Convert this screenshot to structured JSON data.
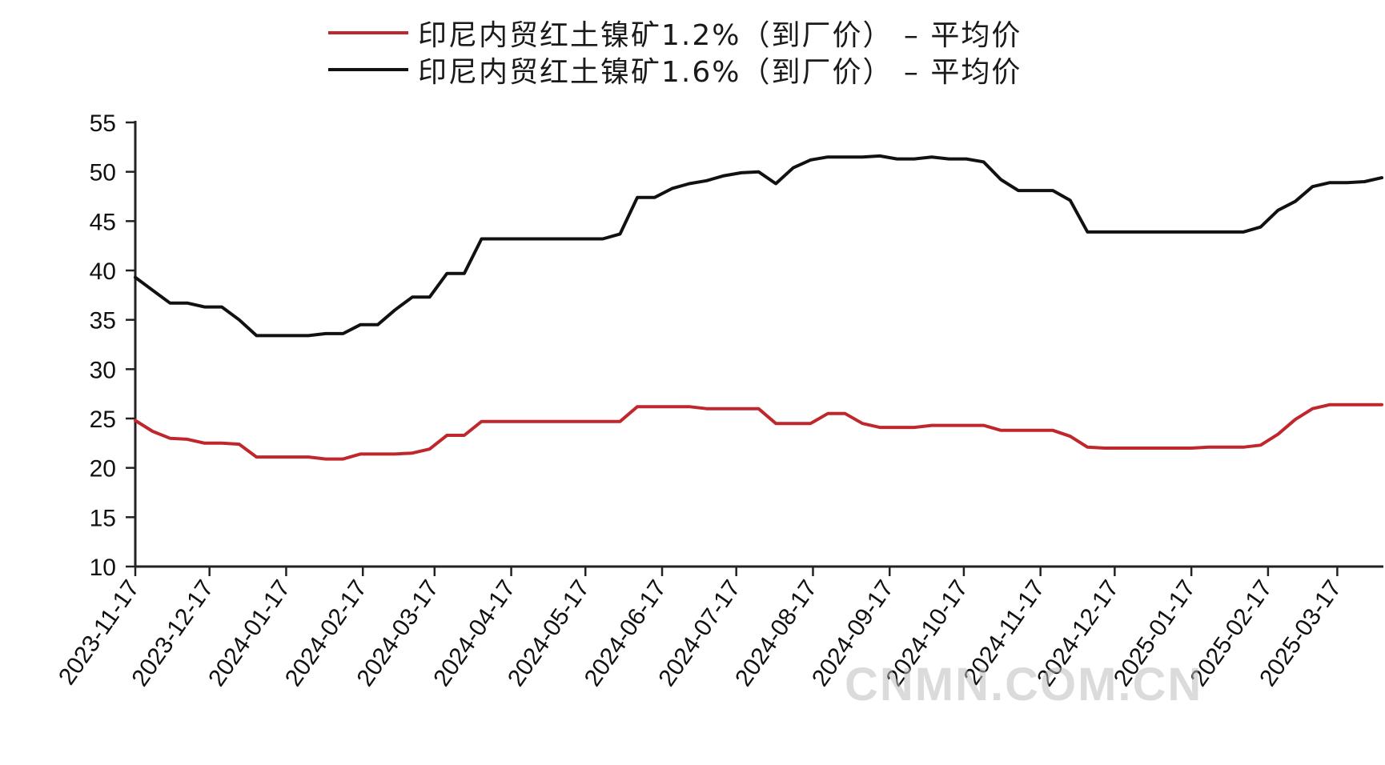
{
  "legend": {
    "series_1": "印尼内贸红土镍矿1.2%（到厂价） – 平均价",
    "series_2": "印尼内贸红土镍矿1.6%（到厂价） – 平均价"
  },
  "watermark": "CNMN.COM.CN",
  "chart_data": {
    "type": "line",
    "title": "",
    "xlabel": "",
    "ylabel": "",
    "ylim": [
      10,
      55
    ],
    "yticks": [
      10,
      15,
      20,
      25,
      30,
      35,
      40,
      45,
      50,
      55
    ],
    "xlim": [
      "2023-11-17",
      "2025-04-04"
    ],
    "xticks": [
      "2023-11-17",
      "2023-12-17",
      "2024-01-17",
      "2024-02-17",
      "2024-03-17",
      "2024-04-17",
      "2024-05-17",
      "2024-06-17",
      "2024-07-17",
      "2024-08-17",
      "2024-09-17",
      "2024-10-17",
      "2024-11-17",
      "2024-12-17",
      "2025-01-17",
      "2025-02-17",
      "2025-03-17"
    ],
    "grid": false,
    "legend_position": "top-center",
    "series": [
      {
        "name": "印尼内贸红土镍矿1.2%（到厂价） – 平均价",
        "color": "#c0272d",
        "points": [
          [
            "2023-11-17",
            24.8
          ],
          [
            "2023-11-24",
            23.7
          ],
          [
            "2023-12-01",
            23.0
          ],
          [
            "2023-12-08",
            22.9
          ],
          [
            "2023-12-15",
            22.5
          ],
          [
            "2023-12-22",
            22.5
          ],
          [
            "2023-12-29",
            22.4
          ],
          [
            "2024-01-05",
            21.1
          ],
          [
            "2024-01-12",
            21.1
          ],
          [
            "2024-01-19",
            21.1
          ],
          [
            "2024-01-26",
            21.1
          ],
          [
            "2024-02-02",
            20.9
          ],
          [
            "2024-02-09",
            20.9
          ],
          [
            "2024-02-16",
            21.4
          ],
          [
            "2024-02-23",
            21.4
          ],
          [
            "2024-03-01",
            21.4
          ],
          [
            "2024-03-08",
            21.5
          ],
          [
            "2024-03-15",
            21.9
          ],
          [
            "2024-03-22",
            23.3
          ],
          [
            "2024-03-29",
            23.3
          ],
          [
            "2024-04-05",
            24.7
          ],
          [
            "2024-04-12",
            24.7
          ],
          [
            "2024-04-19",
            24.7
          ],
          [
            "2024-04-26",
            24.7
          ],
          [
            "2024-05-03",
            24.7
          ],
          [
            "2024-05-10",
            24.7
          ],
          [
            "2024-05-17",
            24.7
          ],
          [
            "2024-05-24",
            24.7
          ],
          [
            "2024-05-31",
            24.7
          ],
          [
            "2024-06-07",
            26.2
          ],
          [
            "2024-06-14",
            26.2
          ],
          [
            "2024-06-21",
            26.2
          ],
          [
            "2024-06-28",
            26.2
          ],
          [
            "2024-07-05",
            26.0
          ],
          [
            "2024-07-12",
            26.0
          ],
          [
            "2024-07-19",
            26.0
          ],
          [
            "2024-07-26",
            26.0
          ],
          [
            "2024-08-02",
            24.5
          ],
          [
            "2024-08-09",
            24.5
          ],
          [
            "2024-08-16",
            24.5
          ],
          [
            "2024-08-23",
            25.5
          ],
          [
            "2024-08-30",
            25.5
          ],
          [
            "2024-09-06",
            24.5
          ],
          [
            "2024-09-13",
            24.1
          ],
          [
            "2024-09-20",
            24.1
          ],
          [
            "2024-09-27",
            24.1
          ],
          [
            "2024-10-04",
            24.3
          ],
          [
            "2024-10-11",
            24.3
          ],
          [
            "2024-10-18",
            24.3
          ],
          [
            "2024-10-25",
            24.3
          ],
          [
            "2024-11-01",
            23.8
          ],
          [
            "2024-11-08",
            23.8
          ],
          [
            "2024-11-15",
            23.8
          ],
          [
            "2024-11-22",
            23.8
          ],
          [
            "2024-11-29",
            23.2
          ],
          [
            "2024-12-06",
            22.1
          ],
          [
            "2024-12-13",
            22.0
          ],
          [
            "2024-12-20",
            22.0
          ],
          [
            "2024-12-27",
            22.0
          ],
          [
            "2025-01-03",
            22.0
          ],
          [
            "2025-01-10",
            22.0
          ],
          [
            "2025-01-17",
            22.0
          ],
          [
            "2025-01-24",
            22.1
          ],
          [
            "2025-01-31",
            22.1
          ],
          [
            "2025-02-07",
            22.1
          ],
          [
            "2025-02-14",
            22.3
          ],
          [
            "2025-02-21",
            23.4
          ],
          [
            "2025-02-28",
            24.9
          ],
          [
            "2025-03-07",
            26.0
          ],
          [
            "2025-03-14",
            26.4
          ],
          [
            "2025-03-21",
            26.4
          ],
          [
            "2025-03-28",
            26.4
          ],
          [
            "2025-04-04",
            26.4
          ]
        ]
      },
      {
        "name": "印尼内贸红土镍矿1.6%（到厂价） – 平均价",
        "color": "#111111",
        "points": [
          [
            "2023-11-17",
            39.3
          ],
          [
            "2023-11-24",
            38.0
          ],
          [
            "2023-12-01",
            36.7
          ],
          [
            "2023-12-08",
            36.7
          ],
          [
            "2023-12-15",
            36.3
          ],
          [
            "2023-12-22",
            36.3
          ],
          [
            "2023-12-29",
            35.0
          ],
          [
            "2024-01-05",
            33.4
          ],
          [
            "2024-01-12",
            33.4
          ],
          [
            "2024-01-19",
            33.4
          ],
          [
            "2024-01-26",
            33.4
          ],
          [
            "2024-02-02",
            33.6
          ],
          [
            "2024-02-09",
            33.6
          ],
          [
            "2024-02-16",
            34.5
          ],
          [
            "2024-02-23",
            34.5
          ],
          [
            "2024-03-01",
            36.0
          ],
          [
            "2024-03-08",
            37.3
          ],
          [
            "2024-03-15",
            37.3
          ],
          [
            "2024-03-22",
            39.7
          ],
          [
            "2024-03-29",
            39.7
          ],
          [
            "2024-04-05",
            43.2
          ],
          [
            "2024-04-12",
            43.2
          ],
          [
            "2024-04-19",
            43.2
          ],
          [
            "2024-04-26",
            43.2
          ],
          [
            "2024-05-03",
            43.2
          ],
          [
            "2024-05-10",
            43.2
          ],
          [
            "2024-05-17",
            43.2
          ],
          [
            "2024-05-24",
            43.2
          ],
          [
            "2024-05-31",
            43.7
          ],
          [
            "2024-06-07",
            47.4
          ],
          [
            "2024-06-14",
            47.4
          ],
          [
            "2024-06-21",
            48.3
          ],
          [
            "2024-06-28",
            48.8
          ],
          [
            "2024-07-05",
            49.1
          ],
          [
            "2024-07-12",
            49.6
          ],
          [
            "2024-07-19",
            49.9
          ],
          [
            "2024-07-26",
            50.0
          ],
          [
            "2024-08-02",
            48.8
          ],
          [
            "2024-08-09",
            50.4
          ],
          [
            "2024-08-16",
            51.2
          ],
          [
            "2024-08-23",
            51.5
          ],
          [
            "2024-08-30",
            51.5
          ],
          [
            "2024-09-06",
            51.5
          ],
          [
            "2024-09-13",
            51.6
          ],
          [
            "2024-09-20",
            51.3
          ],
          [
            "2024-09-27",
            51.3
          ],
          [
            "2024-10-04",
            51.5
          ],
          [
            "2024-10-11",
            51.3
          ],
          [
            "2024-10-18",
            51.3
          ],
          [
            "2024-10-25",
            51.0
          ],
          [
            "2024-11-01",
            49.2
          ],
          [
            "2024-11-08",
            48.1
          ],
          [
            "2024-11-15",
            48.1
          ],
          [
            "2024-11-22",
            48.1
          ],
          [
            "2024-11-29",
            47.1
          ],
          [
            "2024-12-06",
            43.9
          ],
          [
            "2024-12-13",
            43.9
          ],
          [
            "2024-12-20",
            43.9
          ],
          [
            "2024-12-27",
            43.9
          ],
          [
            "2025-01-03",
            43.9
          ],
          [
            "2025-01-10",
            43.9
          ],
          [
            "2025-01-17",
            43.9
          ],
          [
            "2025-01-24",
            43.9
          ],
          [
            "2025-01-31",
            43.9
          ],
          [
            "2025-02-07",
            43.9
          ],
          [
            "2025-02-14",
            44.4
          ],
          [
            "2025-02-21",
            46.1
          ],
          [
            "2025-02-28",
            47.0
          ],
          [
            "2025-03-07",
            48.5
          ],
          [
            "2025-03-14",
            48.9
          ],
          [
            "2025-03-21",
            48.9
          ],
          [
            "2025-03-28",
            49.0
          ],
          [
            "2025-04-04",
            49.4
          ]
        ]
      }
    ]
  }
}
